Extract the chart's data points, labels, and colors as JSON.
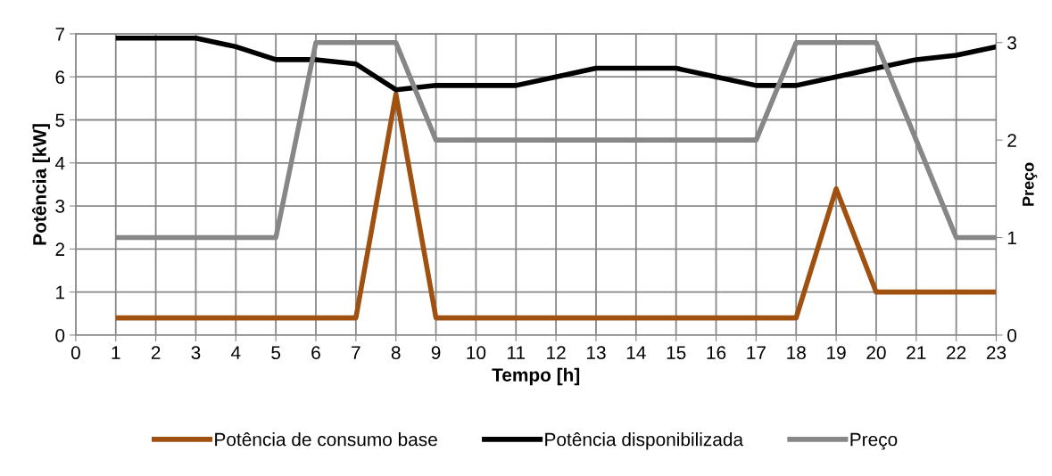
{
  "chart_data": {
    "type": "line",
    "xlabel": "Tempo [h]",
    "ylabel": "Potência [kW]",
    "y2label": "Preço",
    "x": [
      1,
      2,
      3,
      4,
      5,
      6,
      7,
      8,
      9,
      10,
      11,
      12,
      13,
      14,
      15,
      16,
      17,
      18,
      19,
      20,
      21,
      22,
      23
    ],
    "xlim": [
      0,
      23
    ],
    "xticks": [
      0,
      1,
      2,
      3,
      4,
      5,
      6,
      7,
      8,
      9,
      10,
      11,
      12,
      13,
      14,
      15,
      16,
      17,
      18,
      19,
      20,
      21,
      22,
      23
    ],
    "ylim": [
      0,
      7
    ],
    "yticks": [
      0,
      1,
      2,
      3,
      4,
      5,
      6,
      7
    ],
    "y2lim": [
      0,
      3.09
    ],
    "y2ticks": [
      0,
      1,
      2,
      3
    ],
    "grid": true,
    "legend": "bottom",
    "marker": "none",
    "line_style": "solid",
    "series": [
      {
        "name": "Potência de consumo base",
        "color": "#a0500f",
        "values": [
          0.4,
          0.4,
          0.4,
          0.4,
          0.4,
          0.4,
          0.4,
          5.6,
          0.4,
          0.4,
          0.4,
          0.4,
          0.4,
          0.4,
          0.4,
          0.4,
          0.4,
          0.4,
          3.4,
          1,
          1,
          1,
          1
        ]
      },
      {
        "name": "Potência disponibilizada",
        "color": "#000000",
        "values": [
          6.9,
          6.9,
          6.9,
          6.7,
          6.4,
          6.4,
          6.3,
          5.7,
          5.8,
          5.8,
          5.8,
          6.0,
          6.2,
          6.2,
          6.2,
          6.0,
          5.8,
          5.8,
          6.0,
          6.2,
          6.4,
          6.5,
          6.7
        ]
      },
      {
        "name": "Preço",
        "color": "#878787",
        "axis": "y2",
        "values": [
          1,
          1,
          1,
          1,
          1,
          3,
          3,
          3,
          2,
          2,
          2,
          2,
          2,
          2,
          2,
          2,
          2,
          3,
          3,
          3,
          2,
          1,
          1
        ]
      }
    ]
  }
}
